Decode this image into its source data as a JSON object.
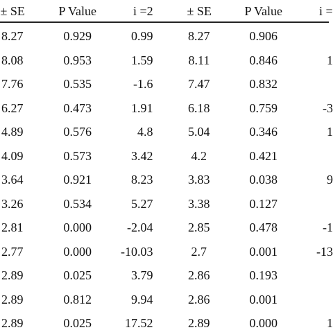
{
  "table": {
    "headers": [
      "± SE",
      "P Value",
      "i =2",
      "± SE",
      "P Value",
      "i ="
    ],
    "rows": [
      [
        "8.27",
        "0.929",
        "0.99",
        "8.27",
        "0.906",
        null
      ],
      [
        "8.08",
        "0.953",
        "1.59",
        "8.11",
        "0.846",
        "1"
      ],
      [
        "7.76",
        "0.535",
        "-1.6",
        "7.47",
        "0.832",
        null
      ],
      [
        "6.27",
        "0.473",
        "1.91",
        "6.18",
        "0.759",
        "-3"
      ],
      [
        "4.89",
        "0.576",
        "4.8",
        "5.04",
        "0.346",
        "1"
      ],
      [
        "4.09",
        "0.573",
        "3.42",
        "4.2",
        "0.421",
        null
      ],
      [
        "3.64",
        "0.921",
        "8.23",
        "3.83",
        "0.038",
        "9"
      ],
      [
        "3.26",
        "0.534",
        "5.27",
        "3.38",
        "0.127",
        null
      ],
      [
        "2.81",
        "0.000",
        "-2.04",
        "2.85",
        "0.478",
        "-1"
      ],
      [
        "2.77",
        "0.000",
        "-10.03",
        "2.7",
        "0.001",
        "-13"
      ],
      [
        "2.89",
        "0.025",
        "3.79",
        "2.86",
        "0.193",
        null
      ],
      [
        "2.89",
        "0.812",
        "9.94",
        "2.86",
        "0.001",
        null
      ],
      [
        "2.89",
        "0.025",
        "17.52",
        "2.89",
        "0.000",
        "1"
      ]
    ]
  }
}
